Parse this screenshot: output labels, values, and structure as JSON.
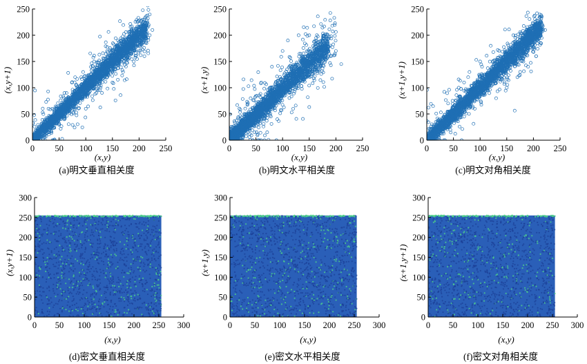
{
  "chart_data": [
    {
      "id": "a",
      "type": "scatter",
      "title": "(a)明文垂直相关度",
      "xlabel": "(x,y)",
      "ylabel": "(x,y+1)",
      "xlim": [
        0,
        250
      ],
      "ylim": [
        0,
        250
      ],
      "xticks": [
        0,
        50,
        100,
        150,
        200,
        250
      ],
      "yticks": [
        0,
        50,
        100,
        150,
        200,
        250
      ],
      "marker_color": "#1f6fb4",
      "series": [
        {
          "points": [
            [
              5,
              4
            ],
            [
              12,
              15
            ],
            [
              20,
              18
            ],
            [
              28,
              30
            ],
            [
              35,
              33
            ],
            [
              40,
              45
            ],
            [
              48,
              50
            ],
            [
              55,
              52
            ],
            [
              62,
              65
            ],
            [
              70,
              68
            ],
            [
              78,
              80
            ],
            [
              85,
              83
            ],
            [
              92,
              95
            ],
            [
              100,
              98
            ],
            [
              108,
              110
            ],
            [
              115,
              112
            ],
            [
              122,
              125
            ],
            [
              130,
              128
            ],
            [
              138,
              140
            ],
            [
              145,
              143
            ],
            [
              152,
              155
            ],
            [
              160,
              158
            ],
            [
              168,
              170
            ],
            [
              175,
              172
            ],
            [
              182,
              185
            ],
            [
              190,
              188
            ],
            [
              198,
              200
            ],
            [
              205,
              203
            ],
            [
              212,
              215
            ],
            [
              218,
              220
            ],
            [
              60,
              40
            ],
            [
              80,
              120
            ],
            [
              120,
              90
            ],
            [
              150,
              110
            ],
            [
              170,
              130
            ],
            [
              190,
              150
            ],
            [
              200,
              170
            ],
            [
              210,
              160
            ],
            [
              100,
              60
            ],
            [
              140,
              170
            ],
            [
              95,
              130
            ],
            [
              60,
              90
            ],
            [
              30,
              60
            ],
            [
              220,
              200
            ],
            [
              225,
              210
            ]
          ]
        }
      ]
    },
    {
      "id": "b",
      "type": "scatter",
      "title": "(b)明文水平相关度",
      "xlabel": "(x,y)",
      "ylabel": "(x+1,y)",
      "xlim": [
        0,
        250
      ],
      "ylim": [
        0,
        250
      ],
      "xticks": [
        0,
        50,
        100,
        150,
        200,
        250
      ],
      "yticks": [
        0,
        50,
        100,
        150,
        200,
        250
      ],
      "marker_color": "#1f6fb4",
      "series": [
        {
          "points": [
            [
              3,
              5
            ],
            [
              10,
              8
            ],
            [
              15,
              18
            ],
            [
              22,
              20
            ],
            [
              30,
              28
            ],
            [
              35,
              40
            ],
            [
              42,
              38
            ],
            [
              50,
              55
            ],
            [
              58,
              52
            ],
            [
              65,
              70
            ],
            [
              72,
              68
            ],
            [
              80,
              85
            ],
            [
              88,
              82
            ],
            [
              95,
              100
            ],
            [
              102,
              96
            ],
            [
              110,
              115
            ],
            [
              118,
              112
            ],
            [
              125,
              130
            ],
            [
              132,
              126
            ],
            [
              140,
              145
            ],
            [
              148,
              142
            ],
            [
              155,
              160
            ],
            [
              162,
              156
            ],
            [
              170,
              172
            ],
            [
              175,
              178
            ],
            [
              180,
              170
            ],
            [
              60,
              110
            ],
            [
              80,
              140
            ],
            [
              100,
              170
            ],
            [
              110,
              190
            ],
            [
              130,
              200
            ],
            [
              150,
              200
            ],
            [
              160,
              130
            ],
            [
              170,
              150
            ],
            [
              190,
              160
            ],
            [
              200,
              170
            ],
            [
              210,
              145
            ],
            [
              40,
              80
            ],
            [
              120,
              60
            ],
            [
              90,
              40
            ]
          ]
        }
      ]
    },
    {
      "id": "c",
      "type": "scatter",
      "title": "(c)明文对角相关度",
      "xlabel": "(x,y)",
      "ylabel": "(x+1,y+1)",
      "xlim": [
        0,
        250
      ],
      "ylim": [
        0,
        250
      ],
      "xticks": [
        0,
        50,
        100,
        150,
        200,
        250
      ],
      "yticks": [
        0,
        50,
        100,
        150,
        200,
        250
      ],
      "marker_color": "#1f6fb4",
      "series": [
        {
          "points": [
            [
              5,
              6
            ],
            [
              12,
              10
            ],
            [
              20,
              22
            ],
            [
              28,
              25
            ],
            [
              35,
              38
            ],
            [
              42,
              40
            ],
            [
              50,
              55
            ],
            [
              58,
              52
            ],
            [
              65,
              70
            ],
            [
              72,
              68
            ],
            [
              80,
              85
            ],
            [
              88,
              82
            ],
            [
              95,
              100
            ],
            [
              102,
              98
            ],
            [
              110,
              115
            ],
            [
              118,
              112
            ],
            [
              125,
              130
            ],
            [
              132,
              128
            ],
            [
              140,
              145
            ],
            [
              148,
              142
            ],
            [
              155,
              160
            ],
            [
              162,
              158
            ],
            [
              170,
              175
            ],
            [
              178,
              172
            ],
            [
              185,
              190
            ],
            [
              192,
              188
            ],
            [
              200,
              205
            ],
            [
              208,
              200
            ],
            [
              215,
              218
            ],
            [
              222,
              210
            ],
            [
              60,
              100
            ],
            [
              80,
              130
            ],
            [
              100,
              150
            ],
            [
              120,
              180
            ],
            [
              150,
              100
            ],
            [
              170,
              120
            ],
            [
              190,
              140
            ],
            [
              205,
              160
            ],
            [
              130,
              80
            ],
            [
              90,
              60
            ],
            [
              40,
              70
            ],
            [
              70,
              110
            ]
          ]
        }
      ]
    },
    {
      "id": "d",
      "type": "scatter",
      "title": "(d)密文垂直相关度",
      "xlabel": "(x,y)",
      "ylabel": "(x,y+1)",
      "xlim": [
        0,
        300
      ],
      "ylim": [
        0,
        300
      ],
      "xticks": [
        0,
        50,
        100,
        150,
        200,
        250,
        300
      ],
      "yticks": [
        0,
        50,
        100,
        150,
        200,
        250,
        300
      ],
      "fill_range": [
        [
          0,
          255
        ],
        [
          0,
          255
        ]
      ],
      "marker_color": "#1f5fb4",
      "highlight_color": "#4fd08a"
    },
    {
      "id": "e",
      "type": "scatter",
      "title": "(e)密文水平相关度",
      "xlabel": "(x,y)",
      "ylabel": "(x+1,y)",
      "xlim": [
        0,
        300
      ],
      "ylim": [
        0,
        300
      ],
      "xticks": [
        0,
        50,
        100,
        150,
        200,
        250,
        300
      ],
      "yticks": [
        0,
        50,
        100,
        150,
        200,
        250,
        300
      ],
      "fill_range": [
        [
          0,
          255
        ],
        [
          0,
          255
        ]
      ],
      "marker_color": "#1f5fb4",
      "highlight_color": "#4fd08a"
    },
    {
      "id": "f",
      "type": "scatter",
      "title": "(f)密文对角相关度",
      "xlabel": "(x,y)",
      "ylabel": "(x+1,y+1)",
      "xlim": [
        0,
        300
      ],
      "ylim": [
        0,
        300
      ],
      "xticks": [
        0,
        50,
        100,
        150,
        200,
        250,
        300
      ],
      "yticks": [
        0,
        50,
        100,
        150,
        200,
        250,
        300
      ],
      "fill_range": [
        [
          0,
          255
        ],
        [
          0,
          255
        ]
      ],
      "marker_color": "#1f5fb4",
      "highlight_color": "#4fd08a"
    }
  ]
}
